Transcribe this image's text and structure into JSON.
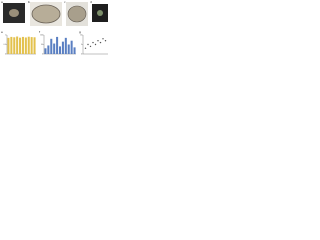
{
  "panels": [
    "a",
    "b",
    "c",
    "d",
    "e",
    "f",
    "g"
  ],
  "chart_data": [
    {
      "type": "bar",
      "color": "#e3c14d",
      "values": [
        0.85,
        0.9,
        0.88,
        0.92,
        0.86,
        0.9,
        0.87,
        0.91,
        0.89,
        0.88
      ],
      "ylim": [
        0,
        1
      ],
      "yticks": [
        0,
        0.5,
        1
      ]
    },
    {
      "type": "bar",
      "color": "#5a7fc2",
      "values": [
        30,
        45,
        80,
        55,
        90,
        40,
        65,
        85,
        50,
        70,
        35
      ],
      "ylim": [
        0,
        100
      ],
      "yticks": [
        0,
        50,
        100
      ]
    },
    {
      "type": "scatter",
      "color": "#555555",
      "x": [
        1,
        2,
        3,
        4,
        5,
        6,
        7,
        8,
        9
      ],
      "values": [
        3,
        5,
        4,
        6,
        5,
        7,
        6,
        8,
        7
      ],
      "xlim": [
        0,
        10
      ],
      "ylim": [
        0,
        10
      ],
      "yticks": [
        0,
        5,
        10
      ]
    }
  ]
}
